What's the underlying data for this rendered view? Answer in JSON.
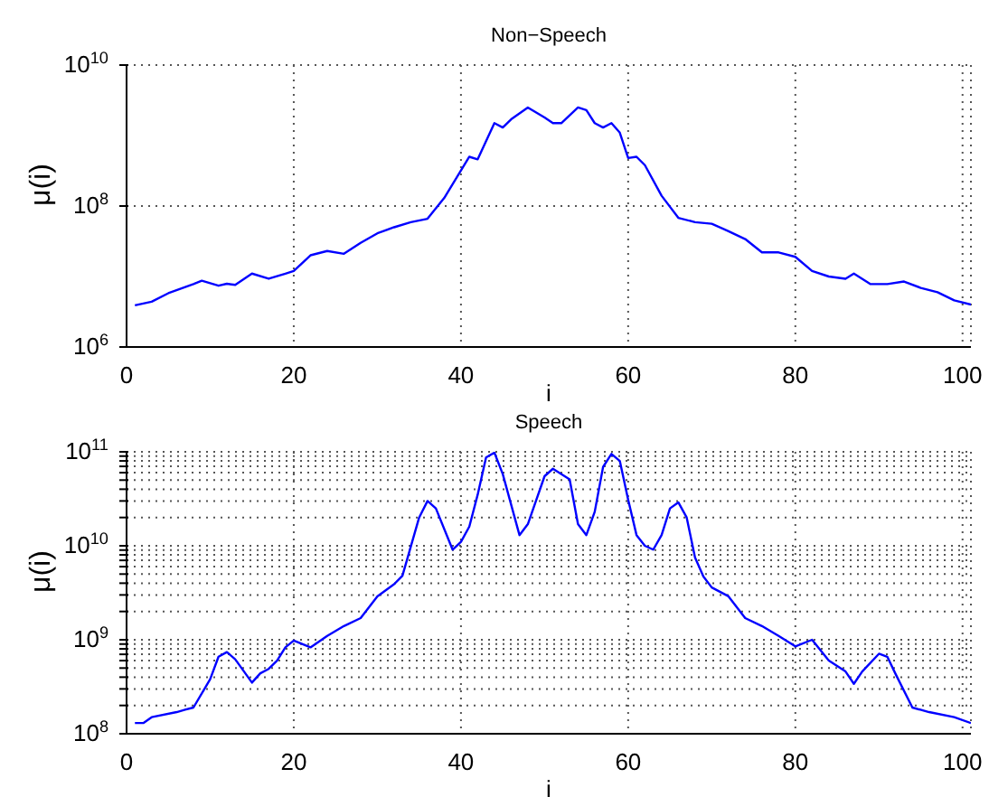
{
  "chart_data": [
    {
      "type": "line",
      "title": "Non−Speech",
      "xlabel": "i",
      "ylabel": "μ(i)",
      "log": "y",
      "grid": true,
      "marker": "none",
      "line_style": "solid",
      "xlim": [
        0,
        101
      ],
      "xticks": [
        0,
        20,
        40,
        60,
        80,
        100
      ],
      "ylim": [
        1000000.0,
        10000000000.0
      ],
      "yticks": [
        {
          "value": 1000000.0,
          "label": "10$^{6}$"
        },
        {
          "value": 100000000.0,
          "label": "10$^{8}$"
        },
        {
          "value": 10000000000.0,
          "label": "10$^{10}$"
        }
      ],
      "series": [
        {
          "color": "#0000ff",
          "x": [
            1,
            3,
            5,
            8,
            9,
            11,
            12,
            13,
            15,
            17,
            19,
            20,
            22,
            24,
            26,
            28,
            30,
            32,
            34,
            36,
            38,
            40,
            41,
            42,
            44,
            45,
            46,
            48,
            50,
            51,
            52,
            54,
            55,
            56,
            57,
            58,
            59,
            60,
            61,
            62,
            64,
            66,
            68,
            70,
            72,
            74,
            76,
            78,
            80,
            82,
            84,
            86,
            87,
            89,
            91,
            93,
            95,
            97,
            99,
            101
          ],
          "values": [
            3900000.0,
            4400000.0,
            5800000.0,
            7800000.0,
            8700000.0,
            7400000.0,
            7900000.0,
            7600000.0,
            11000000.0,
            9300000.0,
            11000000.0,
            12000000.0,
            20000000.0,
            23000000.0,
            21000000.0,
            30000000.0,
            41000000.0,
            50000000.0,
            59000000.0,
            66000000.0,
            130000000.0,
            320000000.0,
            500000000.0,
            460000000.0,
            1500000000.0,
            1300000000.0,
            1700000000.0,
            2500000000.0,
            1800000000.0,
            1500000000.0,
            1500000000.0,
            2500000000.0,
            2300000000.0,
            1500000000.0,
            1300000000.0,
            1500000000.0,
            1100000000.0,
            480000000.0,
            500000000.0,
            380000000.0,
            140000000.0,
            68000000.0,
            59000000.0,
            56000000.0,
            44000000.0,
            34000000.0,
            22000000.0,
            22000000.0,
            19000000.0,
            12000000.0,
            10000000.0,
            9300000.0,
            11000000.0,
            7800000.0,
            7800000.0,
            8500000.0,
            6900000.0,
            6000000.0,
            4600000.0,
            4000000.0
          ]
        }
      ]
    },
    {
      "type": "line",
      "title": "Speech",
      "xlabel": "i",
      "ylabel": "μ(i)",
      "log": "y",
      "grid": true,
      "marker": "none",
      "line_style": "solid",
      "xlim": [
        0,
        101
      ],
      "xticks": [
        0,
        20,
        40,
        60,
        80,
        100
      ],
      "ylim": [
        100000000.0,
        100000000000.0
      ],
      "yticks": [
        {
          "value": 100000000.0,
          "label": "10$^{8}$"
        },
        {
          "value": 200000000.0,
          "label": null
        },
        {
          "value": 300000000.0,
          "label": null
        },
        {
          "value": 400000000.0,
          "label": null
        },
        {
          "value": 500000000.0,
          "label": null
        },
        {
          "value": 600000000.0,
          "label": null
        },
        {
          "value": 700000000.0,
          "label": null
        },
        {
          "value": 800000000.0,
          "label": null
        },
        {
          "value": 900000000.0,
          "label": null
        },
        {
          "value": 1000000000.0,
          "label": "10$^{9}$"
        },
        {
          "value": 2000000000.0,
          "label": null
        },
        {
          "value": 3000000000.0,
          "label": null
        },
        {
          "value": 4000000000.0,
          "label": null
        },
        {
          "value": 5000000000.0,
          "label": null
        },
        {
          "value": 6000000000.0,
          "label": null
        },
        {
          "value": 7000000000.0,
          "label": null
        },
        {
          "value": 8000000000.0,
          "label": null
        },
        {
          "value": 9000000000.0,
          "label": null
        },
        {
          "value": 10000000000.0,
          "label": "10$^{10}$"
        },
        {
          "value": 20000000000.0,
          "label": null
        },
        {
          "value": 30000000000.0,
          "label": null
        },
        {
          "value": 40000000000.0,
          "label": null
        },
        {
          "value": 50000000000.0,
          "label": null
        },
        {
          "value": 60000000000.0,
          "label": null
        },
        {
          "value": 70000000000.0,
          "label": null
        },
        {
          "value": 80000000000.0,
          "label": null
        },
        {
          "value": 90000000000.0,
          "label": null
        },
        {
          "value": 100000000000.0,
          "label": "10$^{11}$"
        }
      ],
      "series": [
        {
          "color": "#0000ff",
          "x": [
            1,
            2,
            3,
            6,
            7,
            8,
            10,
            11,
            12,
            13,
            15,
            16,
            17,
            18,
            19,
            20,
            22,
            24,
            26,
            28,
            30,
            32,
            33,
            35,
            36,
            37,
            39,
            40,
            41,
            42,
            43,
            44,
            45,
            47,
            48,
            50,
            51,
            53,
            54,
            55,
            56,
            57,
            58,
            59,
            60,
            61,
            62,
            63,
            64,
            65,
            66,
            67,
            68,
            69,
            70,
            72,
            74,
            76,
            78,
            80,
            82,
            84,
            86,
            87,
            88,
            90,
            91,
            92,
            94,
            96,
            99,
            101
          ],
          "values": [
            130000000.0,
            130000000.0,
            150000000.0,
            170000000.0,
            180000000.0,
            190000000.0,
            380000000.0,
            660000000.0,
            740000000.0,
            620000000.0,
            350000000.0,
            440000000.0,
            490000000.0,
            600000000.0,
            830000000.0,
            980000000.0,
            830000000.0,
            1100000000.0,
            1400000000.0,
            1700000000.0,
            2900000000.0,
            3900000000.0,
            4800000000.0,
            20000000000.0,
            30000000000.0,
            25000000000.0,
            9100000000.0,
            11000000000.0,
            16000000000.0,
            35000000000.0,
            87000000000.0,
            98000000000.0,
            58000000000.0,
            13000000000.0,
            17000000000.0,
            55000000000.0,
            66000000000.0,
            51000000000.0,
            17000000000.0,
            13000000000.0,
            23000000000.0,
            69000000000.0,
            95000000000.0,
            80000000000.0,
            31000000000.0,
            13000000000.0,
            10000000000.0,
            9100000000.0,
            13000000000.0,
            25000000000.0,
            29000000000.0,
            20000000000.0,
            7500000000.0,
            4700000000.0,
            3600000000.0,
            2900000000.0,
            1700000000.0,
            1400000000.0,
            1100000000.0,
            850000000.0,
            1000000000.0,
            600000000.0,
            460000000.0,
            340000000.0,
            460000000.0,
            710000000.0,
            660000000.0,
            430000000.0,
            190000000.0,
            170000000.0,
            150000000.0,
            130000000.0
          ]
        }
      ]
    }
  ]
}
